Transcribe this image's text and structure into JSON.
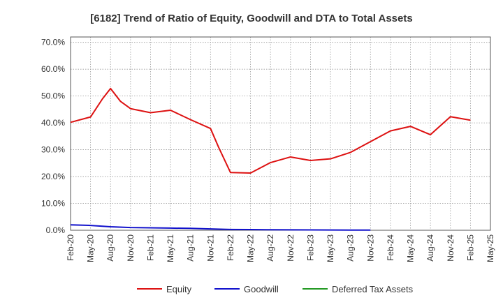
{
  "chart_data": {
    "type": "line",
    "title": "[6182]  Trend of Ratio of Equity, Goodwill and DTA to Total Assets",
    "xlabel": "",
    "ylabel": "",
    "ylim": [
      0,
      72
    ],
    "y_ticks": [
      0,
      10,
      20,
      30,
      40,
      50,
      60,
      70
    ],
    "y_tick_labels": [
      "0.0%",
      "10.0%",
      "20.0%",
      "30.0%",
      "40.0%",
      "50.0%",
      "60.0%",
      "70.0%"
    ],
    "x_tick_labels": [
      "Feb-20",
      "May-20",
      "Aug-20",
      "Nov-20",
      "Feb-21",
      "May-21",
      "Aug-21",
      "Nov-21",
      "Feb-22",
      "May-22",
      "Aug-22",
      "Nov-22",
      "Feb-23",
      "May-23",
      "Aug-23",
      "Nov-23",
      "Feb-24",
      "May-24",
      "Aug-24",
      "Nov-24",
      "Feb-25",
      "May-25"
    ],
    "grid": true,
    "legend_position": "bottom",
    "series": [
      {
        "name": "Equity",
        "color": "#dd1111",
        "points": [
          [
            0,
            40.2
          ],
          [
            1,
            42.2
          ],
          [
            1.6,
            49.0
          ],
          [
            2,
            52.8
          ],
          [
            2.5,
            48.0
          ],
          [
            3,
            45.3
          ],
          [
            4,
            43.8
          ],
          [
            5,
            44.7
          ],
          [
            6,
            41.2
          ],
          [
            7,
            37.9
          ],
          [
            7.4,
            31.0
          ],
          [
            8,
            21.5
          ],
          [
            9,
            21.3
          ],
          [
            10,
            25.2
          ],
          [
            11,
            27.3
          ],
          [
            12,
            26.0
          ],
          [
            13,
            26.6
          ],
          [
            14,
            29.0
          ],
          [
            15,
            33.0
          ],
          [
            16,
            37.0
          ],
          [
            17,
            38.7
          ],
          [
            18,
            35.6
          ],
          [
            19,
            42.3
          ],
          [
            20,
            41.0
          ]
        ]
      },
      {
        "name": "Goodwill",
        "color": "#1111cc",
        "points": [
          [
            0,
            2.0
          ],
          [
            1,
            1.8
          ],
          [
            2,
            1.3
          ],
          [
            3,
            1.0
          ],
          [
            4,
            0.9
          ],
          [
            5,
            0.8
          ],
          [
            6,
            0.7
          ],
          [
            7,
            0.5
          ],
          [
            8,
            0.3
          ],
          [
            9,
            0.25
          ],
          [
            10,
            0.2
          ],
          [
            11,
            0.15
          ],
          [
            12,
            0.12
          ],
          [
            13,
            0.1
          ],
          [
            14,
            0.08
          ],
          [
            15,
            0.05
          ]
        ]
      },
      {
        "name": "Deferred Tax Assets",
        "color": "#229922",
        "points": []
      }
    ]
  }
}
